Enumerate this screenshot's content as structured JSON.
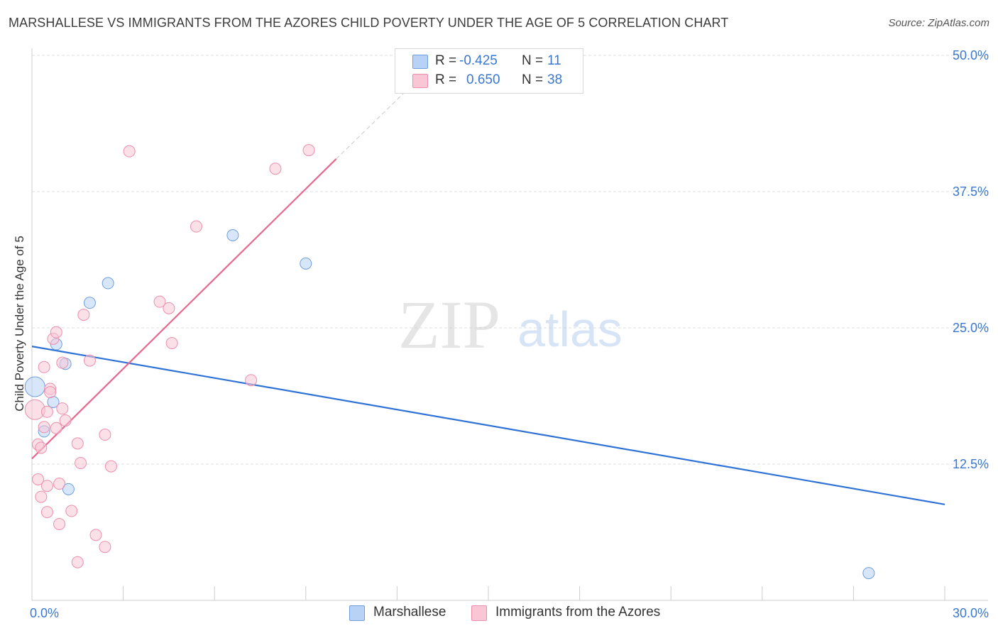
{
  "title": "MARSHALLESE VS IMMIGRANTS FROM THE AZORES CHILD POVERTY UNDER THE AGE OF 5 CORRELATION CHART",
  "source": "Source: ZipAtlas.com",
  "watermark": {
    "zip": "ZIP",
    "atlas": "atlas"
  },
  "legend": {
    "marshallese": {
      "r_label": "R =",
      "r_value": "-0.425",
      "n_label": "N =",
      "n_value": "11"
    },
    "azores": {
      "r_label": "R =",
      "r_value": "0.650",
      "n_label": "N =",
      "n_value": "38"
    }
  },
  "colors": {
    "blue_fill": "#b8d2f5",
    "blue_stroke": "#6f9edd",
    "blue_line": "#2f72d6",
    "pink_fill": "#f8c6d5",
    "pink_stroke": "#eb8fac",
    "pink_line": "#e8678f",
    "tick_text": "#3a78d0",
    "grid": "#dddddd"
  },
  "chart_data": {
    "type": "scatter",
    "xlabel": "",
    "ylabel": "Child Poverty Under the Age of 5",
    "xlim": [
      0,
      30
    ],
    "ylim": [
      0,
      50
    ],
    "x_tick_labels": [
      {
        "value": 0,
        "label": "0.0%"
      },
      {
        "value": 30,
        "label": "30.0%"
      }
    ],
    "x_minor_ticks": [
      3,
      6,
      9,
      12,
      15,
      18,
      21,
      24,
      27,
      30
    ],
    "y_ticks": [
      {
        "value": 12.5,
        "label": "12.5%"
      },
      {
        "value": 25,
        "label": "25.0%"
      },
      {
        "value": 37.5,
        "label": "37.5%"
      },
      {
        "value": 50,
        "label": "50.0%"
      }
    ],
    "series": [
      {
        "name": "Marshallese",
        "color": "blue",
        "points": [
          {
            "x": 0.1,
            "y": 19.6,
            "big": true
          },
          {
            "x": 0.4,
            "y": 15.5
          },
          {
            "x": 0.7,
            "y": 18.2
          },
          {
            "x": 0.8,
            "y": 23.5
          },
          {
            "x": 1.1,
            "y": 21.7
          },
          {
            "x": 1.2,
            "y": 10.2
          },
          {
            "x": 1.9,
            "y": 27.3
          },
          {
            "x": 2.5,
            "y": 29.1
          },
          {
            "x": 6.6,
            "y": 33.5
          },
          {
            "x": 9.0,
            "y": 30.9
          },
          {
            "x": 27.5,
            "y": 2.5
          }
        ],
        "trend": {
          "x_start": 0,
          "y_start": 23.3,
          "x_end": 30,
          "y_end": 8.8
        }
      },
      {
        "name": "Immigrants from the Azores",
        "color": "pink",
        "points": [
          {
            "x": 0.1,
            "y": 17.5,
            "big": true
          },
          {
            "x": 0.2,
            "y": 14.3
          },
          {
            "x": 0.2,
            "y": 11.1
          },
          {
            "x": 0.3,
            "y": 14.0
          },
          {
            "x": 0.3,
            "y": 9.5
          },
          {
            "x": 0.4,
            "y": 15.9
          },
          {
            "x": 0.4,
            "y": 21.4
          },
          {
            "x": 0.5,
            "y": 8.1
          },
          {
            "x": 0.5,
            "y": 10.5
          },
          {
            "x": 0.5,
            "y": 17.3
          },
          {
            "x": 0.6,
            "y": 19.4
          },
          {
            "x": 0.6,
            "y": 19.1
          },
          {
            "x": 0.7,
            "y": 24.0
          },
          {
            "x": 0.8,
            "y": 24.6
          },
          {
            "x": 0.8,
            "y": 15.8
          },
          {
            "x": 0.9,
            "y": 7.0
          },
          {
            "x": 0.9,
            "y": 10.7
          },
          {
            "x": 1.0,
            "y": 21.8
          },
          {
            "x": 1.0,
            "y": 17.6
          },
          {
            "x": 1.1,
            "y": 16.5
          },
          {
            "x": 1.3,
            "y": 8.2
          },
          {
            "x": 1.5,
            "y": 3.5
          },
          {
            "x": 1.5,
            "y": 14.4
          },
          {
            "x": 1.6,
            "y": 12.6
          },
          {
            "x": 1.7,
            "y": 26.2
          },
          {
            "x": 1.9,
            "y": 22.0
          },
          {
            "x": 2.1,
            "y": 6.0
          },
          {
            "x": 2.4,
            "y": 15.2
          },
          {
            "x": 2.4,
            "y": 4.9
          },
          {
            "x": 2.6,
            "y": 12.3
          },
          {
            "x": 3.2,
            "y": 41.2
          },
          {
            "x": 4.2,
            "y": 27.4
          },
          {
            "x": 4.5,
            "y": 26.8
          },
          {
            "x": 4.6,
            "y": 23.6
          },
          {
            "x": 5.4,
            "y": 34.3
          },
          {
            "x": 7.2,
            "y": 20.2
          },
          {
            "x": 8.0,
            "y": 39.6
          },
          {
            "x": 9.1,
            "y": 41.3
          }
        ],
        "trend": {
          "x_start": 0,
          "y_start": 13.0,
          "x_end": 10.0,
          "y_end": 40.5
        },
        "trend_extension": {
          "x_start": 10.0,
          "y_start": 40.5,
          "x_end": 13.2,
          "y_end": 49.2
        }
      }
    ]
  },
  "bottom_legend": {
    "marshallese": "Marshallese",
    "azores": "Immigrants from the Azores"
  }
}
